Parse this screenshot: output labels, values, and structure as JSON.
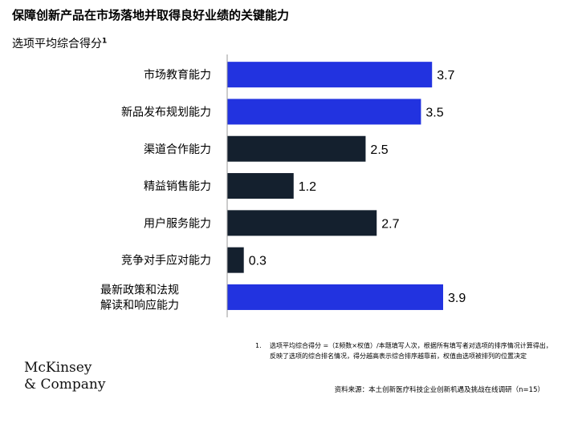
{
  "header": {
    "title": "保障创新产品在市场落地并取得良好业绩的关键能力",
    "subtitle": "选项平均综合得分",
    "subtitle_sup": "1"
  },
  "chart_data": {
    "type": "bar",
    "orientation": "horizontal",
    "categories": [
      [
        "市场教育能力"
      ],
      [
        "新品发布规划能力"
      ],
      [
        "渠道合作能力"
      ],
      [
        "精益销售能力"
      ],
      [
        "用户服务能力"
      ],
      [
        "竞争对手应对能力"
      ],
      [
        "最新政策和法规",
        "解读和响应能力"
      ]
    ],
    "values": [
      3.7,
      3.5,
      2.5,
      1.2,
      2.7,
      0.3,
      3.9
    ],
    "value_labels": [
      "3.7",
      "3.5",
      "2.5",
      "1.2",
      "2.7",
      "0.3",
      "3.9"
    ],
    "highlighted": [
      true,
      true,
      false,
      false,
      false,
      false,
      true
    ],
    "colors": {
      "highlight": "#2233e0",
      "default": "#14202e"
    },
    "xlim": [
      0,
      3.9
    ],
    "title": "保障创新产品在市场落地并取得良好业绩的关键能力",
    "xlabel": "",
    "ylabel": ""
  },
  "footnote": {
    "number": "1.",
    "text": "选项平均综合得分 =（Σ频数×权值）/本题填写人次，根据所有填写者对选项的排序情况计算得出，反映了选项的综合排名情况，得分越高表示综合排序越靠前，权值由选项被排列的位置决定"
  },
  "source": "资料来源：本土创新医疗科技企业创新机遇及挑战在线调研（n=15）",
  "logo": {
    "line1": "McKinsey",
    "line2": "& Company"
  }
}
